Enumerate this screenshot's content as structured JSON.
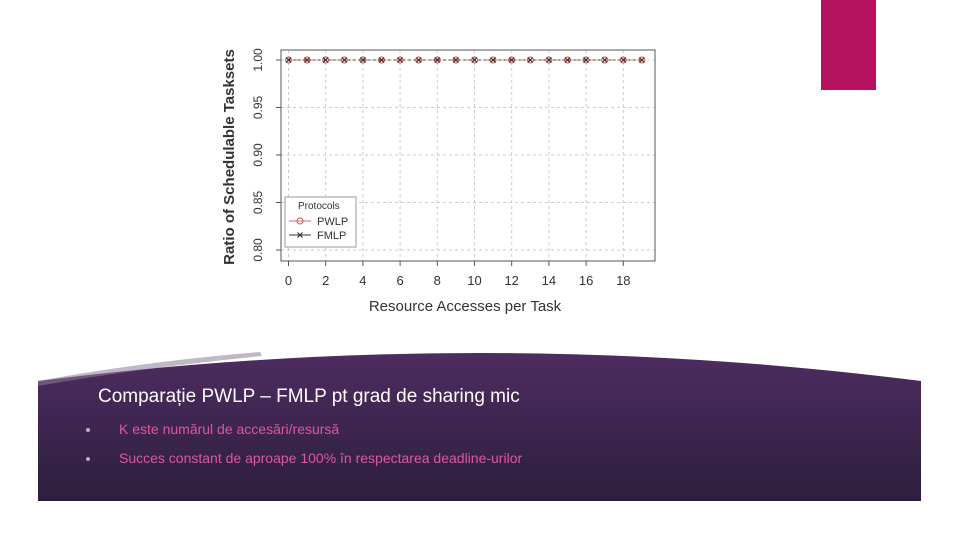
{
  "colors": {
    "accent": "#b5135f",
    "banner_top": "#4e2c61",
    "banner_bottom": "#2c1f3d",
    "bullet_text": "#e0569c",
    "pwlp": "#e06666",
    "fmlp": "#333333"
  },
  "slide": {
    "title": "Comparație PWLP – FMLP pt grad de sharing mic",
    "bullets": [
      "K este numărul de accesări/resursă",
      "Succes constant de aproape 100% în respectarea deadline-urilor"
    ]
  },
  "chart_data": {
    "type": "line",
    "xlabel": "Resource Accesses per Task",
    "ylabel": "Ratio of Schedulable Tasksets",
    "xlim": [
      0,
      19
    ],
    "ylim": [
      0.8,
      1.0
    ],
    "x_ticks": [
      0,
      2,
      4,
      6,
      8,
      10,
      12,
      14,
      16,
      18
    ],
    "x_tick_labels": [
      "0",
      "2",
      "4",
      "6",
      "8",
      "10",
      "12",
      "14",
      "16",
      "18"
    ],
    "y_ticks": [
      0.8,
      0.85,
      0.9,
      0.95,
      1.0
    ],
    "y_tick_labels": [
      "0.80",
      "0.85",
      "0.90",
      "0.95",
      "1.00"
    ],
    "grid": true,
    "legend": {
      "title": "Protocols",
      "placement": "bottom-left"
    },
    "x": [
      0,
      1,
      2,
      3,
      4,
      5,
      6,
      7,
      8,
      9,
      10,
      11,
      12,
      13,
      14,
      15,
      16,
      17,
      18,
      19
    ],
    "series": [
      {
        "name": "PWLP",
        "marker": "circle",
        "values": [
          1,
          1,
          1,
          1,
          1,
          1,
          1,
          1,
          1,
          1,
          1,
          1,
          1,
          1,
          1,
          1,
          1,
          1,
          1,
          1
        ]
      },
      {
        "name": "FMLP",
        "marker": "cross",
        "values": [
          1,
          1,
          1,
          1,
          1,
          1,
          1,
          1,
          1,
          1,
          1,
          1,
          1,
          1,
          1,
          1,
          1,
          1,
          1,
          1
        ]
      }
    ]
  }
}
